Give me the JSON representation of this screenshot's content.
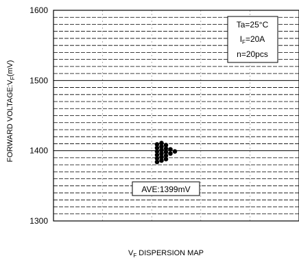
{
  "chart_data": {
    "type": "scatter",
    "ylabel": "FORWARD VOLTAGE:V",
    "ylabel_sub": "F",
    "ylabel_unit": "(mV)",
    "xlabel": "V",
    "xlabel_sub": "F",
    "xlabel_rest": " DISPERSION MAP",
    "ylim": [
      1300,
      1600
    ],
    "yticks": [
      "1300",
      "1400",
      "1500",
      "1600"
    ],
    "grid": true,
    "conditions": {
      "ta": "Ta=25°C",
      "if_main": "I",
      "if_sub": "F",
      "if_rest": "=20A",
      "n": "n=20pcs"
    },
    "average_label": "AVE:1399mV",
    "points": [
      {
        "col": 0,
        "y": 1384
      },
      {
        "col": 0,
        "y": 1389
      },
      {
        "col": 0,
        "y": 1394
      },
      {
        "col": 0,
        "y": 1399
      },
      {
        "col": 0,
        "y": 1404
      },
      {
        "col": 0,
        "y": 1409
      },
      {
        "col": 1,
        "y": 1386
      },
      {
        "col": 1,
        "y": 1391
      },
      {
        "col": 1,
        "y": 1396
      },
      {
        "col": 1,
        "y": 1401
      },
      {
        "col": 1,
        "y": 1406
      },
      {
        "col": 1,
        "y": 1411
      },
      {
        "col": 2,
        "y": 1388
      },
      {
        "col": 2,
        "y": 1393
      },
      {
        "col": 2,
        "y": 1398
      },
      {
        "col": 2,
        "y": 1403
      },
      {
        "col": 2,
        "y": 1408
      },
      {
        "col": 3,
        "y": 1396
      },
      {
        "col": 3,
        "y": 1402
      },
      {
        "col": 4,
        "y": 1399
      }
    ]
  }
}
